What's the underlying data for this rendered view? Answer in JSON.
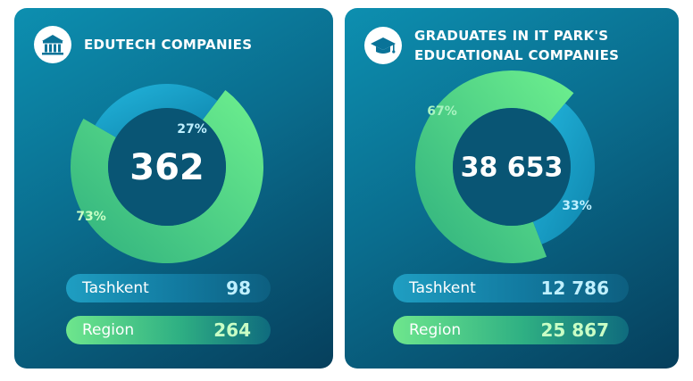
{
  "colors": {
    "primary": "#1aa6cf",
    "secondary": "#5fe38a",
    "inner_disc": "#095574",
    "primary_label": "#bff0ff",
    "secondary_label": "#c9ffc5"
  },
  "chart_data": [
    {
      "type": "pie",
      "title": "EDUTECH COMPANIES",
      "icon": "building-icon",
      "center_value": "362",
      "slices": [
        {
          "label": "Tashkent",
          "percent": 27,
          "percent_label": "27%",
          "count": "98"
        },
        {
          "label": "Region",
          "percent": 73,
          "percent_label": "73%",
          "count": "264"
        }
      ]
    },
    {
      "type": "pie",
      "title": "GRADUATES IN IT PARK'S\nEDUCATIONAL COMPANIES",
      "icon": "graduation-cap-icon",
      "center_value": "38 653",
      "slices": [
        {
          "label": "Tashkent",
          "percent": 33,
          "percent_label": "33%",
          "count": "12 786"
        },
        {
          "label": "Region",
          "percent": 67,
          "percent_label": "67%",
          "count": "25 867"
        }
      ]
    }
  ]
}
